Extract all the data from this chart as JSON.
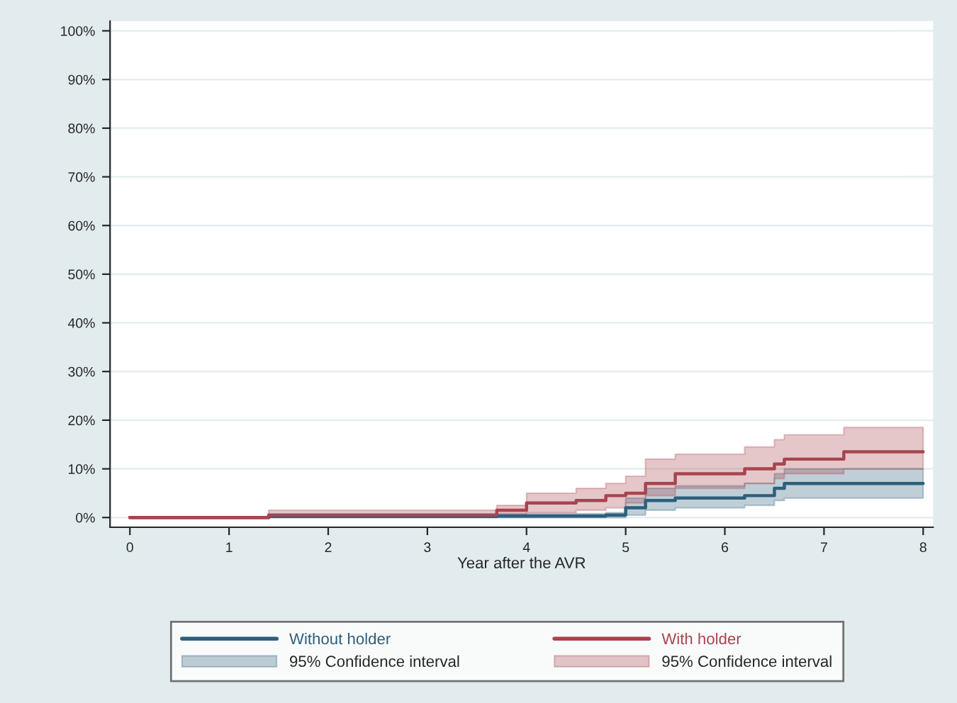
{
  "chart_data": {
    "type": "step",
    "xlabel": "Year after the AVR",
    "x": [
      0,
      1.4,
      3.7,
      4.0,
      4.5,
      4.8,
      5.0,
      5.2,
      5.5,
      6.2,
      6.5,
      6.6,
      7.2,
      8
    ],
    "series": [
      {
        "name": "Without holder",
        "color": "#2e5f7c",
        "values": [
          0,
          0.2,
          0.3,
          0.3,
          0.3,
          0.5,
          2,
          3.5,
          4,
          4.5,
          6,
          7,
          7,
          7
        ],
        "lower": [
          0,
          0,
          0,
          0,
          0,
          0,
          0.5,
          1.5,
          2,
          2.5,
          3.5,
          4,
          4,
          4
        ],
        "upper": [
          0,
          0.5,
          0.8,
          0.8,
          0.8,
          1,
          4,
          6,
          6.5,
          7,
          9,
          10,
          10,
          10
        ]
      },
      {
        "name": "With holder",
        "color": "#a8444e",
        "values": [
          0,
          0.5,
          1.5,
          3,
          3.5,
          4.5,
          5,
          7,
          9,
          10,
          11,
          12,
          13.5,
          13.5
        ],
        "lower": [
          0,
          0.2,
          0.5,
          1,
          1.5,
          2,
          3,
          4.5,
          6,
          7,
          8,
          9,
          10,
          10
        ],
        "upper": [
          0,
          1.5,
          2.5,
          5,
          6,
          7,
          8.5,
          12,
          13,
          14.5,
          16,
          17,
          18.5,
          18.5
        ]
      }
    ],
    "annotations": [
      "95% Confidence interval",
      "95% Confidence interval"
    ],
    "xlim": [
      -0.2,
      8.1
    ],
    "xticks": [
      0,
      1,
      2,
      3,
      4,
      5,
      6,
      7,
      8
    ],
    "ylim": [
      -2,
      102
    ],
    "yticks": [
      {
        "value": 0,
        "label": "0%"
      },
      {
        "value": 10,
        "label": "10%"
      },
      {
        "value": 20,
        "label": "20%"
      },
      {
        "value": 30,
        "label": "30%"
      },
      {
        "value": 40,
        "label": "40%"
      },
      {
        "value": 50,
        "label": "50%"
      },
      {
        "value": 60,
        "label": "60%"
      },
      {
        "value": 70,
        "label": "70%"
      },
      {
        "value": 80,
        "label": "80%"
      },
      {
        "value": 90,
        "label": "90%"
      },
      {
        "value": 100,
        "label": "100%"
      }
    ],
    "grid": "y",
    "legend": "bottom"
  }
}
